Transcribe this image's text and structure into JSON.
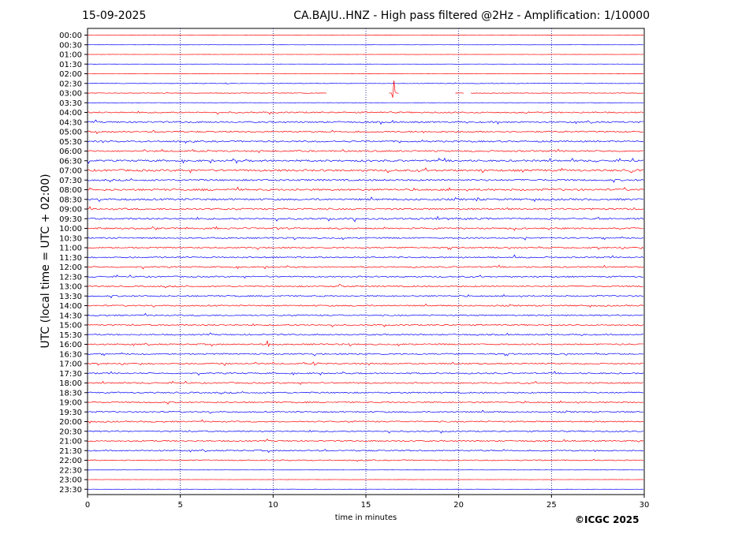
{
  "header": {
    "date": "15-09-2025",
    "title": "CA.BAJU..HNZ - High pass filtered @2Hz - Amplification: 1/10000"
  },
  "footer": {
    "credit": "©ICGC 2025"
  },
  "colors": {
    "red_trace": "#ff0000",
    "blue_trace": "#0000ff",
    "grid": "#000088"
  },
  "chart_data": {
    "type": "line",
    "title": "CA.BAJU..HNZ - High pass filtered @2Hz - Amplification: 1/10000",
    "xlabel": "time in minutes",
    "ylabel": "UTC (local time = UTC + 02:00)",
    "xlim": [
      0,
      30
    ],
    "xticks": [
      0,
      5,
      10,
      15,
      20,
      25,
      30
    ],
    "grid": "vertical dotted at 5-minute ticks",
    "rows": [
      "00:00",
      "00:30",
      "01:00",
      "01:30",
      "02:00",
      "02:30",
      "03:00",
      "03:30",
      "04:00",
      "04:30",
      "05:00",
      "05:30",
      "06:00",
      "06:30",
      "07:00",
      "07:30",
      "08:00",
      "08:30",
      "09:00",
      "09:30",
      "10:00",
      "10:30",
      "11:00",
      "11:30",
      "12:00",
      "12:30",
      "13:00",
      "13:30",
      "14:00",
      "14:30",
      "15:00",
      "15:30",
      "16:00",
      "16:30",
      "17:00",
      "17:30",
      "18:00",
      "18:30",
      "19:00",
      "19:30",
      "20:00",
      "20:30",
      "21:00",
      "21:30",
      "22:00",
      "22:30",
      "23:00",
      "23:30"
    ],
    "row_colors": [
      "red",
      "blue",
      "red",
      "blue",
      "red",
      "blue",
      "red",
      "blue",
      "red",
      "blue",
      "red",
      "blue",
      "red",
      "blue",
      "red",
      "blue",
      "red",
      "blue",
      "red",
      "blue",
      "red",
      "blue",
      "red",
      "blue",
      "red",
      "blue",
      "red",
      "blue",
      "red",
      "blue",
      "red",
      "blue",
      "red",
      "blue",
      "red",
      "blue",
      "red",
      "blue",
      "red",
      "blue",
      "red",
      "blue",
      "red",
      "blue",
      "red",
      "blue",
      "red",
      "blue"
    ],
    "noise_level": [
      0.1,
      0.1,
      0.1,
      0.1,
      0.1,
      0.3,
      0.3,
      0.2,
      0.8,
      0.9,
      0.9,
      0.9,
      0.9,
      1.1,
      1.2,
      1.0,
      1.1,
      1.1,
      1.0,
      1.0,
      0.9,
      0.8,
      0.8,
      0.8,
      0.8,
      0.8,
      0.8,
      0.8,
      0.8,
      0.8,
      0.8,
      0.8,
      0.8,
      0.8,
      0.8,
      0.8,
      0.8,
      0.8,
      0.8,
      0.8,
      0.8,
      0.8,
      0.8,
      0.8,
      0.6,
      0.1,
      0.1,
      0.1
    ],
    "events": [
      {
        "row": 5,
        "minute": 7.5,
        "amplitude": 1.5
      },
      {
        "row": 6,
        "minute": 16.5,
        "amplitude": 18
      },
      {
        "row": 14,
        "minute": 29.3,
        "amplitude": 4
      },
      {
        "row": 17,
        "minute": 21.0,
        "amplitude": 4
      },
      {
        "row": 19,
        "minute": 14.4,
        "amplitude": 3
      },
      {
        "row": 21,
        "minute": 23.6,
        "amplitude": 4
      },
      {
        "row": 23,
        "minute": 23.0,
        "amplitude": 3
      },
      {
        "row": 26,
        "minute": 13.6,
        "amplitude": 4
      },
      {
        "row": 32,
        "minute": 9.7,
        "amplitude": 5
      },
      {
        "row": 34,
        "minute": 7.4,
        "amplitude": 3
      },
      {
        "row": 34,
        "minute": 12.2,
        "amplitude": 4
      }
    ],
    "gaps": [
      {
        "row": 6,
        "from_minute": 12.9,
        "to_minute": 16.2
      },
      {
        "row": 6,
        "from_minute": 16.8,
        "to_minute": 19.8
      },
      {
        "row": 6,
        "from_minute": 20.3,
        "to_minute": 20.6
      }
    ]
  }
}
